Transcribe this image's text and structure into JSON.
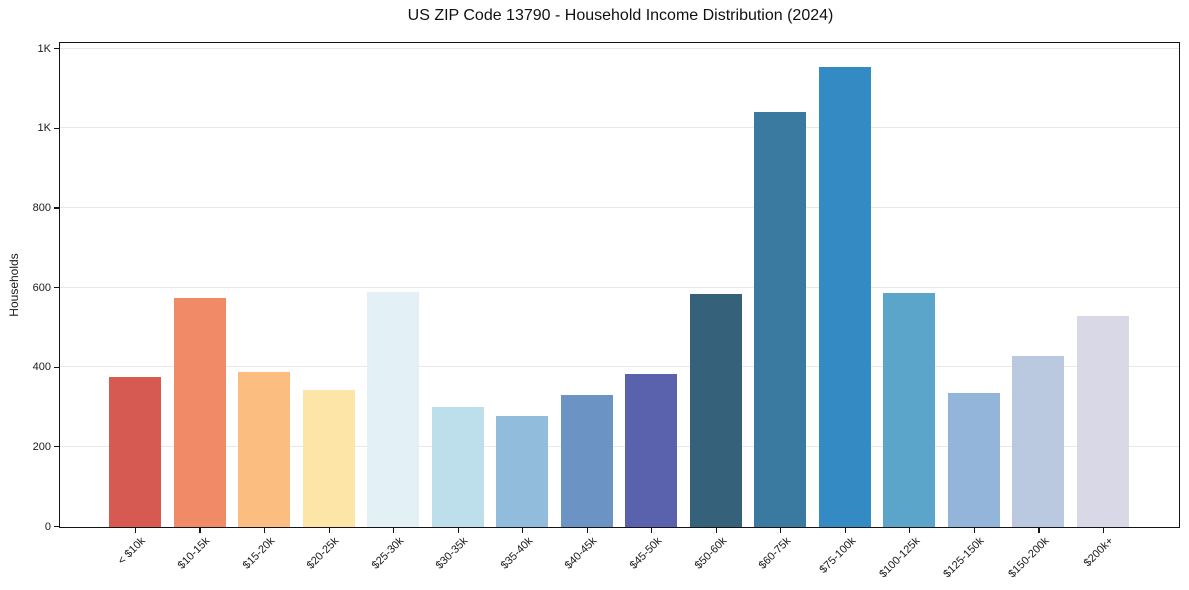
{
  "chart_data": {
    "type": "bar",
    "title": "US ZIP Code 13790 - Household Income Distribution (2024)",
    "xlabel": "",
    "ylabel": "Households",
    "categories": [
      "< $10k",
      "$10-15k",
      "$15-20k",
      "$20-25k",
      "$25-30k",
      "$30-35k",
      "$35-40k",
      "$40-45k",
      "$45-50k",
      "$50-60k",
      "$60-75k",
      "$75-100k",
      "$100-125k",
      "$125-150k",
      "$150-200k",
      "$200k+"
    ],
    "values": [
      377,
      575,
      390,
      343,
      589,
      302,
      280,
      332,
      385,
      584,
      1042,
      1155,
      587,
      337,
      429,
      531
    ],
    "bar_colors": [
      "#d65a52",
      "#f18a67",
      "#fcbd80",
      "#fde5a7",
      "#e3f0f5",
      "#bddeeb",
      "#91bcdc",
      "#6b93c4",
      "#5b62ad",
      "#35617a",
      "#3a7aa0",
      "#348bc3",
      "#5ba5cb",
      "#93b5d9",
      "#bac8e0",
      "#d8d8e6"
    ],
    "ylim": [
      0,
      1213
    ],
    "y_ticks": [
      {
        "value": 0,
        "label": "0"
      },
      {
        "value": 200,
        "label": "200"
      },
      {
        "value": 400,
        "label": "400"
      },
      {
        "value": 600,
        "label": "600"
      },
      {
        "value": 800,
        "label": "800"
      },
      {
        "value": 1000,
        "label": "1K"
      },
      {
        "value": 1200,
        "label": "1K"
      }
    ],
    "grid": "horizontal",
    "legend_position": "none",
    "theme": {
      "grid_color": "#e8e8e8",
      "spine_color": "#141414",
      "text_color": "#1a1a1a",
      "background_color": "#ffffff"
    }
  }
}
